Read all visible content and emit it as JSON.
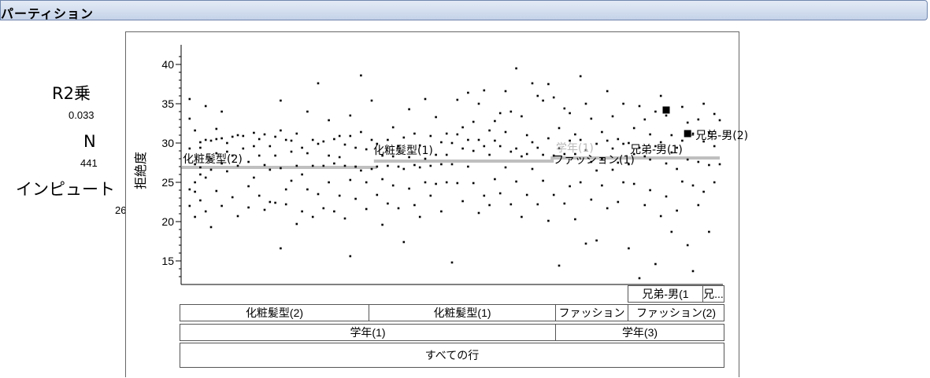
{
  "window": {
    "title": "パーティション"
  },
  "stats": {
    "r2_label": "R2乗",
    "r2_value": "0.033",
    "n_label": "N",
    "n_value": "441",
    "input_label": "インピュート",
    "input_value": "26"
  },
  "partition": {
    "level3": [
      "兄弟-男(1",
      "兄..."
    ],
    "level2": [
      "化粧髪型(2)",
      "化粧髪型(1)",
      "ファッション",
      "ファッション(2)"
    ],
    "level1": [
      "学年(1)",
      "学年(3)"
    ],
    "level0": [
      "すべての行"
    ]
  },
  "chart_data": {
    "type": "scatter",
    "ylabel": "拒絶度",
    "ylim": [
      12,
      42
    ],
    "yticks": [
      15,
      20,
      25,
      30,
      35,
      40
    ],
    "group_labels": [
      {
        "label": "化粧髪型(2)",
        "mean": 27.2
      },
      {
        "label": "化粧髪型(1)",
        "mean": 28.3
      },
      {
        "label": "学年(1)",
        "mean": 28.6
      },
      {
        "label": "ファッション(1)",
        "mean": 27.6
      },
      {
        "label": "兄弟-男(1)",
        "mean": 28.4
      },
      {
        "label": "兄弟-男(2)",
        "mean": 31.0
      }
    ],
    "group_means": [
      {
        "x_range": [
          0,
          0.36
        ],
        "y": 27.0
      },
      {
        "x_range": [
          0.36,
          0.69
        ],
        "y": 27.8
      },
      {
        "x_range": [
          0.69,
          1.0
        ],
        "y": 28.2
      }
    ],
    "highlights": [
      {
        "x": 0.9,
        "y": 34.2
      },
      {
        "x": 0.94,
        "y": 31.2
      }
    ],
    "points": [
      [
        0.01,
        35.6
      ],
      [
        0.01,
        33.1
      ],
      [
        0.01,
        29.3
      ],
      [
        0.01,
        24.1
      ],
      [
        0.01,
        22.0
      ],
      [
        0.02,
        31.6
      ],
      [
        0.02,
        27.3
      ],
      [
        0.02,
        25.0
      ],
      [
        0.02,
        23.8
      ],
      [
        0.02,
        20.6
      ],
      [
        0.03,
        30.1
      ],
      [
        0.03,
        29.4
      ],
      [
        0.03,
        26.9
      ],
      [
        0.03,
        26.0
      ],
      [
        0.03,
        22.7
      ],
      [
        0.04,
        34.7
      ],
      [
        0.04,
        30.4
      ],
      [
        0.04,
        25.6
      ],
      [
        0.04,
        21.3
      ],
      [
        0.05,
        30.3
      ],
      [
        0.05,
        28.0
      ],
      [
        0.05,
        26.6
      ],
      [
        0.05,
        19.3
      ],
      [
        0.06,
        31.8
      ],
      [
        0.06,
        30.5
      ],
      [
        0.06,
        28.7
      ],
      [
        0.06,
        23.9
      ],
      [
        0.07,
        34.0
      ],
      [
        0.07,
        30.6
      ],
      [
        0.07,
        27.4
      ],
      [
        0.07,
        22.0
      ],
      [
        0.08,
        30.0
      ],
      [
        0.08,
        28.9
      ],
      [
        0.08,
        26.4
      ],
      [
        0.09,
        30.8
      ],
      [
        0.09,
        28.4
      ],
      [
        0.09,
        23.1
      ],
      [
        0.1,
        31.0
      ],
      [
        0.1,
        27.1
      ],
      [
        0.1,
        20.7
      ],
      [
        0.11,
        30.9
      ],
      [
        0.11,
        29.3
      ],
      [
        0.12,
        27.6
      ],
      [
        0.12,
        24.5
      ],
      [
        0.12,
        21.8
      ],
      [
        0.13,
        31.3
      ],
      [
        0.13,
        29.6
      ],
      [
        0.13,
        25.6
      ],
      [
        0.14,
        30.5
      ],
      [
        0.14,
        28.4
      ],
      [
        0.14,
        23.3
      ],
      [
        0.15,
        31.1
      ],
      [
        0.15,
        27.2
      ],
      [
        0.15,
        21.5
      ],
      [
        0.16,
        29.6
      ],
      [
        0.16,
        26.6
      ],
      [
        0.16,
        22.5
      ],
      [
        0.17,
        30.8
      ],
      [
        0.17,
        28.4
      ],
      [
        0.17,
        22.4
      ],
      [
        0.18,
        31.6
      ],
      [
        0.18,
        35.4
      ],
      [
        0.18,
        26.8
      ],
      [
        0.18,
        16.6
      ],
      [
        0.19,
        30.4
      ],
      [
        0.19,
        24.1
      ],
      [
        0.19,
        22.2
      ],
      [
        0.2,
        28.9
      ],
      [
        0.2,
        30.3
      ],
      [
        0.2,
        25.2
      ],
      [
        0.21,
        31.2
      ],
      [
        0.21,
        27.1
      ],
      [
        0.21,
        19.7
      ],
      [
        0.22,
        29.4
      ],
      [
        0.22,
        26.0
      ],
      [
        0.22,
        21.3
      ],
      [
        0.23,
        34.0
      ],
      [
        0.23,
        28.7
      ],
      [
        0.23,
        24.1
      ],
      [
        0.24,
        30.4
      ],
      [
        0.24,
        27.1
      ],
      [
        0.24,
        20.6
      ],
      [
        0.25,
        37.6
      ],
      [
        0.25,
        29.9
      ],
      [
        0.25,
        23.5
      ],
      [
        0.26,
        30.2
      ],
      [
        0.26,
        27.1
      ],
      [
        0.26,
        21.7
      ],
      [
        0.27,
        32.9
      ],
      [
        0.27,
        28.4
      ],
      [
        0.27,
        25.0
      ],
      [
        0.28,
        30.5
      ],
      [
        0.28,
        27.4
      ],
      [
        0.28,
        21.3
      ],
      [
        0.29,
        30.9
      ],
      [
        0.29,
        28.2
      ],
      [
        0.29,
        23.3
      ],
      [
        0.3,
        29.8
      ],
      [
        0.3,
        27.1
      ],
      [
        0.3,
        20.4
      ],
      [
        0.31,
        33.5
      ],
      [
        0.31,
        30.9
      ],
      [
        0.31,
        25.3
      ],
      [
        0.31,
        15.6
      ],
      [
        0.32,
        29.4
      ],
      [
        0.32,
        27.0
      ],
      [
        0.32,
        22.9
      ],
      [
        0.33,
        38.6
      ],
      [
        0.33,
        31.4
      ],
      [
        0.33,
        26.5
      ],
      [
        0.34,
        29.2
      ],
      [
        0.34,
        25.0
      ],
      [
        0.34,
        21.6
      ],
      [
        0.35,
        35.4
      ],
      [
        0.35,
        30.4
      ],
      [
        0.35,
        26.7
      ],
      [
        0.36,
        29.9
      ],
      [
        0.36,
        27.0
      ],
      [
        0.36,
        23.4
      ],
      [
        0.37,
        28.4
      ],
      [
        0.37,
        25.4
      ],
      [
        0.37,
        19.6
      ],
      [
        0.38,
        30.4
      ],
      [
        0.38,
        27.1
      ],
      [
        0.38,
        22.3
      ],
      [
        0.39,
        32.0
      ],
      [
        0.39,
        28.3
      ],
      [
        0.39,
        24.6
      ],
      [
        0.4,
        29.6
      ],
      [
        0.4,
        27.0
      ],
      [
        0.4,
        21.7
      ],
      [
        0.41,
        30.7
      ],
      [
        0.41,
        26.7
      ],
      [
        0.41,
        17.4
      ],
      [
        0.42,
        34.3
      ],
      [
        0.42,
        28.2
      ],
      [
        0.42,
        24.2
      ],
      [
        0.43,
        31.2
      ],
      [
        0.43,
        27.2
      ],
      [
        0.43,
        22.1
      ],
      [
        0.44,
        29.7
      ],
      [
        0.44,
        26.9
      ],
      [
        0.44,
        20.6
      ],
      [
        0.45,
        35.6
      ],
      [
        0.45,
        28.0
      ],
      [
        0.45,
        25.0
      ],
      [
        0.46,
        30.9
      ],
      [
        0.46,
        27.1
      ],
      [
        0.46,
        23.3
      ],
      [
        0.47,
        33.3
      ],
      [
        0.47,
        28.5
      ],
      [
        0.47,
        24.8
      ],
      [
        0.48,
        30.1
      ],
      [
        0.48,
        27.3
      ],
      [
        0.48,
        21.3
      ],
      [
        0.49,
        31.2
      ],
      [
        0.49,
        28.5
      ],
      [
        0.49,
        25.0
      ],
      [
        0.5,
        30.0
      ],
      [
        0.5,
        27.3
      ],
      [
        0.5,
        14.8
      ],
      [
        0.51,
        35.5
      ],
      [
        0.51,
        31.1
      ],
      [
        0.51,
        24.9
      ],
      [
        0.52,
        32.0
      ],
      [
        0.52,
        29.3
      ],
      [
        0.52,
        22.6
      ],
      [
        0.53,
        36.4
      ],
      [
        0.53,
        30.4
      ],
      [
        0.53,
        27.0
      ],
      [
        0.54,
        32.7
      ],
      [
        0.54,
        29.0
      ],
      [
        0.54,
        24.9
      ],
      [
        0.55,
        35.0
      ],
      [
        0.55,
        30.4
      ],
      [
        0.55,
        21.1
      ],
      [
        0.56,
        36.7
      ],
      [
        0.56,
        29.6
      ],
      [
        0.56,
        23.3
      ],
      [
        0.57,
        31.6
      ],
      [
        0.57,
        28.5
      ],
      [
        0.57,
        22.1
      ],
      [
        0.58,
        32.8
      ],
      [
        0.58,
        30.3
      ],
      [
        0.58,
        25.4
      ],
      [
        0.59,
        33.8
      ],
      [
        0.59,
        29.6
      ],
      [
        0.59,
        23.6
      ],
      [
        0.6,
        36.6
      ],
      [
        0.6,
        31.4
      ],
      [
        0.6,
        26.9
      ],
      [
        0.61,
        34.0
      ],
      [
        0.61,
        28.9
      ],
      [
        0.61,
        22.2
      ],
      [
        0.62,
        39.5
      ],
      [
        0.62,
        29.3
      ],
      [
        0.62,
        25.1
      ],
      [
        0.63,
        33.4
      ],
      [
        0.63,
        28.3
      ],
      [
        0.63,
        20.6
      ],
      [
        0.64,
        31.0
      ],
      [
        0.64,
        28.6
      ],
      [
        0.64,
        23.4
      ],
      [
        0.65,
        37.6
      ],
      [
        0.65,
        30.1
      ],
      [
        0.65,
        26.7
      ],
      [
        0.66,
        36.0
      ],
      [
        0.66,
        29.4
      ],
      [
        0.66,
        22.2
      ],
      [
        0.67,
        35.4
      ],
      [
        0.67,
        28.5
      ],
      [
        0.67,
        25.2
      ],
      [
        0.68,
        37.5
      ],
      [
        0.68,
        30.6
      ],
      [
        0.68,
        20.1
      ],
      [
        0.69,
        35.8
      ],
      [
        0.69,
        28.4
      ],
      [
        0.69,
        23.4
      ],
      [
        0.7,
        31.9
      ],
      [
        0.7,
        29.3
      ],
      [
        0.7,
        14.4
      ],
      [
        0.71,
        34.4
      ],
      [
        0.71,
        28.6
      ],
      [
        0.71,
        22.3
      ],
      [
        0.72,
        33.8
      ],
      [
        0.72,
        30.3
      ],
      [
        0.72,
        24.5
      ],
      [
        0.73,
        31.1
      ],
      [
        0.73,
        28.6
      ],
      [
        0.73,
        20.3
      ],
      [
        0.74,
        38.5
      ],
      [
        0.74,
        30.4
      ],
      [
        0.74,
        25.0
      ],
      [
        0.75,
        35.0
      ],
      [
        0.75,
        29.1
      ],
      [
        0.75,
        17.2
      ],
      [
        0.76,
        33.1
      ],
      [
        0.76,
        27.6
      ],
      [
        0.76,
        22.8
      ],
      [
        0.77,
        29.9
      ],
      [
        0.77,
        26.5
      ],
      [
        0.77,
        17.6
      ],
      [
        0.78,
        31.4
      ],
      [
        0.78,
        28.0
      ],
      [
        0.78,
        24.6
      ],
      [
        0.79,
        36.6
      ],
      [
        0.79,
        30.3
      ],
      [
        0.79,
        21.7
      ],
      [
        0.8,
        33.4
      ],
      [
        0.8,
        29.3
      ],
      [
        0.8,
        26.6
      ],
      [
        0.81,
        30.5
      ],
      [
        0.81,
        27.5
      ],
      [
        0.81,
        22.5
      ],
      [
        0.82,
        35.0
      ],
      [
        0.82,
        29.9
      ],
      [
        0.82,
        25.0
      ],
      [
        0.83,
        30.0
      ],
      [
        0.83,
        27.3
      ],
      [
        0.83,
        16.6
      ],
      [
        0.84,
        31.9
      ],
      [
        0.84,
        28.6
      ],
      [
        0.84,
        24.8
      ],
      [
        0.85,
        34.7
      ],
      [
        0.85,
        29.4
      ],
      [
        0.85,
        12.8
      ],
      [
        0.86,
        33.0
      ],
      [
        0.86,
        28.3
      ],
      [
        0.86,
        22.1
      ],
      [
        0.87,
        31.1
      ],
      [
        0.87,
        27.9
      ],
      [
        0.87,
        24.0
      ],
      [
        0.88,
        34.0
      ],
      [
        0.88,
        29.6
      ],
      [
        0.88,
        14.6
      ],
      [
        0.89,
        36.0
      ],
      [
        0.89,
        30.1
      ],
      [
        0.89,
        20.7
      ],
      [
        0.9,
        33.5
      ],
      [
        0.9,
        27.4
      ],
      [
        0.9,
        23.2
      ],
      [
        0.91,
        31.0
      ],
      [
        0.91,
        28.8
      ],
      [
        0.91,
        18.7
      ],
      [
        0.92,
        29.4
      ],
      [
        0.92,
        26.7
      ],
      [
        0.92,
        21.4
      ],
      [
        0.93,
        34.6
      ],
      [
        0.93,
        30.3
      ],
      [
        0.93,
        25.1
      ],
      [
        0.94,
        32.6
      ],
      [
        0.94,
        27.9
      ],
      [
        0.94,
        17.0
      ],
      [
        0.95,
        31.2
      ],
      [
        0.95,
        24.6
      ],
      [
        0.95,
        13.7
      ],
      [
        0.96,
        33.0
      ],
      [
        0.96,
        27.6
      ],
      [
        0.96,
        22.1
      ],
      [
        0.97,
        35.0
      ],
      [
        0.97,
        30.2
      ],
      [
        0.97,
        23.8
      ],
      [
        0.98,
        31.3
      ],
      [
        0.98,
        27.2
      ],
      [
        0.98,
        18.7
      ],
      [
        0.99,
        33.7
      ],
      [
        0.99,
        29.6
      ],
      [
        0.99,
        25.0
      ],
      [
        1.0,
        32.9
      ],
      [
        1.0,
        27.3
      ]
    ]
  }
}
